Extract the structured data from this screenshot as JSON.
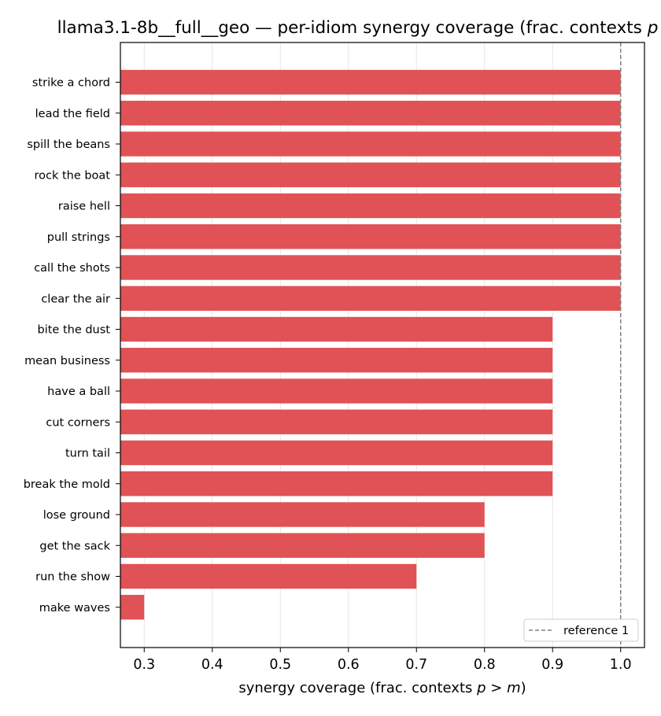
{
  "chart_data": {
    "type": "bar",
    "orientation": "horizontal",
    "title": "llama3.1-8b__full__geo — per-idiom synergy coverage  (frac. contexts p > m)",
    "xlabel": "synergy coverage  (frac. contexts p > m)",
    "categories": [
      "strike a chord",
      "lead the field",
      "spill the beans",
      "rock the boat",
      "raise hell",
      "pull strings",
      "call the shots",
      "clear the air",
      "bite the dust",
      "mean business",
      "have a ball",
      "cut corners",
      "turn tail",
      "break the mold",
      "lose ground",
      "get the sack",
      "run the show",
      "make waves"
    ],
    "values": [
      1.0,
      1.0,
      1.0,
      1.0,
      1.0,
      1.0,
      1.0,
      1.0,
      0.9,
      0.9,
      0.9,
      0.9,
      0.9,
      0.9,
      0.8,
      0.8,
      0.7,
      0.3
    ],
    "xlim": [
      0.265,
      1.035
    ],
    "xticks": [
      0.3,
      0.4,
      0.5,
      0.6,
      0.7,
      0.8,
      0.9,
      1.0
    ],
    "xtick_labels": [
      "0.3",
      "0.4",
      "0.5",
      "0.6",
      "0.7",
      "0.8",
      "0.9",
      "1.0"
    ],
    "grid": "x",
    "bar_color": "#e05255",
    "reference_line": {
      "x": 1.0,
      "label": "reference 1",
      "color": "#808080"
    },
    "legend_placement": "lower-right"
  }
}
